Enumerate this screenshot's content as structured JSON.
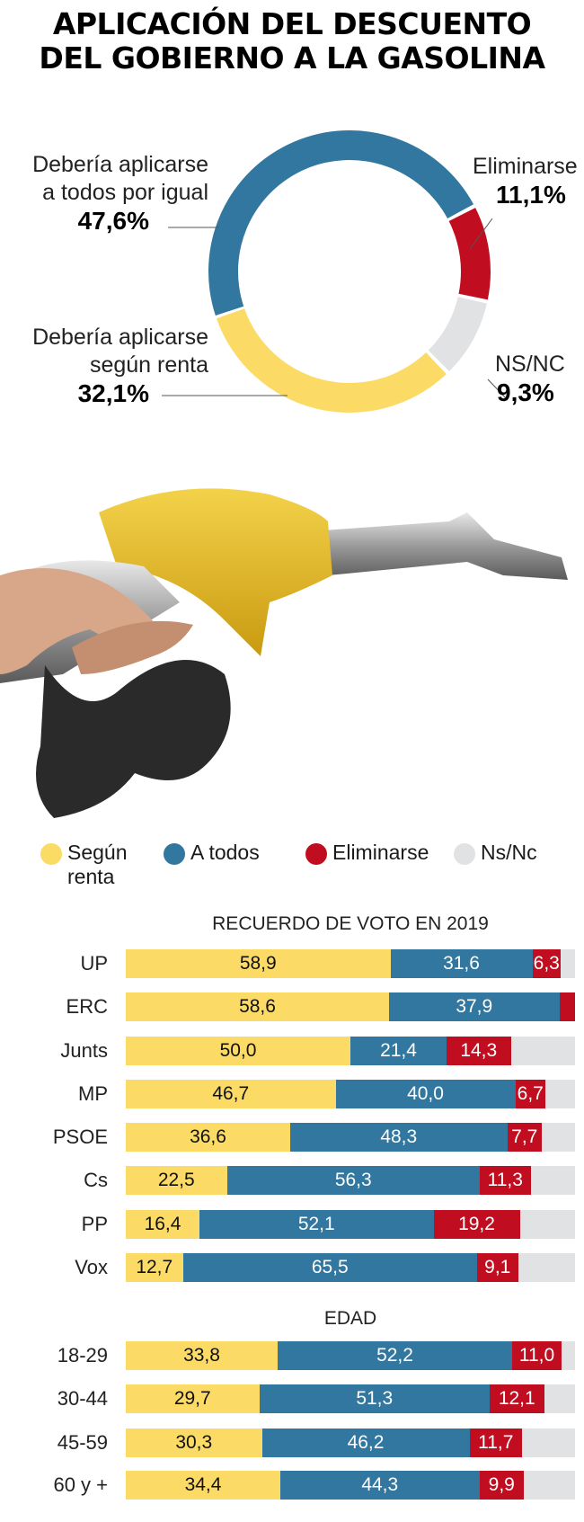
{
  "title": [
    "APLICACIÓN DEL DESCUENTO",
    "DEL GOBIERNO A LA GASOLINA"
  ],
  "colors": {
    "segun_renta": "#FBDB66",
    "a_todos": "#31779F",
    "eliminarse": "#C00D20",
    "nsnc": "#E1E2E4"
  },
  "chart_data": [
    {
      "type": "pie",
      "donut": true,
      "slices": [
        {
          "key": "a_todos",
          "label_lines": [
            "Debería aplicarse",
            "a todos por igual"
          ],
          "value": 47.6,
          "value_label": "47,6%"
        },
        {
          "key": "eliminarse",
          "label_lines": [
            "Eliminarse"
          ],
          "value": 11.1,
          "value_label": "11,1%"
        },
        {
          "key": "nsnc",
          "label_lines": [
            "NS/NC"
          ],
          "value": 9.3,
          "value_label": "9,3%"
        },
        {
          "key": "segun_renta",
          "label_lines": [
            "Debería aplicarse",
            "según renta"
          ],
          "value": 32.1,
          "value_label": "32,1%"
        }
      ]
    },
    {
      "type": "bar",
      "stacked": true,
      "orientation": "horizontal",
      "legend": [
        {
          "key": "segun_renta",
          "label_lines": [
            "Según",
            "renta"
          ]
        },
        {
          "key": "a_todos",
          "label_lines": [
            "A todos"
          ]
        },
        {
          "key": "eliminarse",
          "label_lines": [
            "Eliminarse"
          ]
        },
        {
          "key": "nsnc",
          "label_lines": [
            "Ns/Nc"
          ]
        }
      ],
      "xlim": [
        0,
        100
      ],
      "groups": [
        {
          "title": "RECUERDO DE VOTO EN 2019",
          "rows": [
            {
              "label": "UP",
              "values": [
                58.9,
                31.6,
                6.3
              ],
              "labels": [
                "58,9",
                "31,6",
                "6,3"
              ]
            },
            {
              "label": "ERC",
              "values": [
                58.6,
                37.9,
                3.5
              ],
              "labels": [
                "58,6",
                "37,9",
                ""
              ]
            },
            {
              "label": "Junts",
              "values": [
                50.0,
                21.4,
                14.3
              ],
              "labels": [
                "50,0",
                "21,4",
                "14,3"
              ]
            },
            {
              "label": "MP",
              "values": [
                46.7,
                40.0,
                6.7
              ],
              "labels": [
                "46,7",
                "40,0",
                "6,7"
              ]
            },
            {
              "label": "PSOE",
              "values": [
                36.6,
                48.3,
                7.7
              ],
              "labels": [
                "36,6",
                "48,3",
                "7,7"
              ]
            },
            {
              "label": "Cs",
              "values": [
                22.5,
                56.3,
                11.3
              ],
              "labels": [
                "22,5",
                "56,3",
                "11,3"
              ]
            },
            {
              "label": "PP",
              "values": [
                16.4,
                52.1,
                19.2
              ],
              "labels": [
                "16,4",
                "52,1",
                "19,2"
              ]
            },
            {
              "label": "Vox",
              "values": [
                12.7,
                65.5,
                9.1
              ],
              "labels": [
                "12,7",
                "65,5",
                "9,1"
              ]
            }
          ]
        },
        {
          "title": "EDAD",
          "rows": [
            {
              "label": "18-29",
              "values": [
                33.8,
                52.2,
                11.0
              ],
              "labels": [
                "33,8",
                "52,2",
                "11,0"
              ]
            },
            {
              "label": "30-44",
              "values": [
                29.7,
                51.3,
                12.1
              ],
              "labels": [
                "29,7",
                "51,3",
                "12,1"
              ]
            },
            {
              "label": "45-59",
              "values": [
                30.3,
                46.2,
                11.7
              ],
              "labels": [
                "30,3",
                "46,2",
                "11,7"
              ]
            },
            {
              "label": "60 y +",
              "values": [
                34.4,
                44.3,
                9.9
              ],
              "labels": [
                "34,4",
                "44,3",
                "9,9"
              ]
            }
          ]
        }
      ]
    }
  ]
}
